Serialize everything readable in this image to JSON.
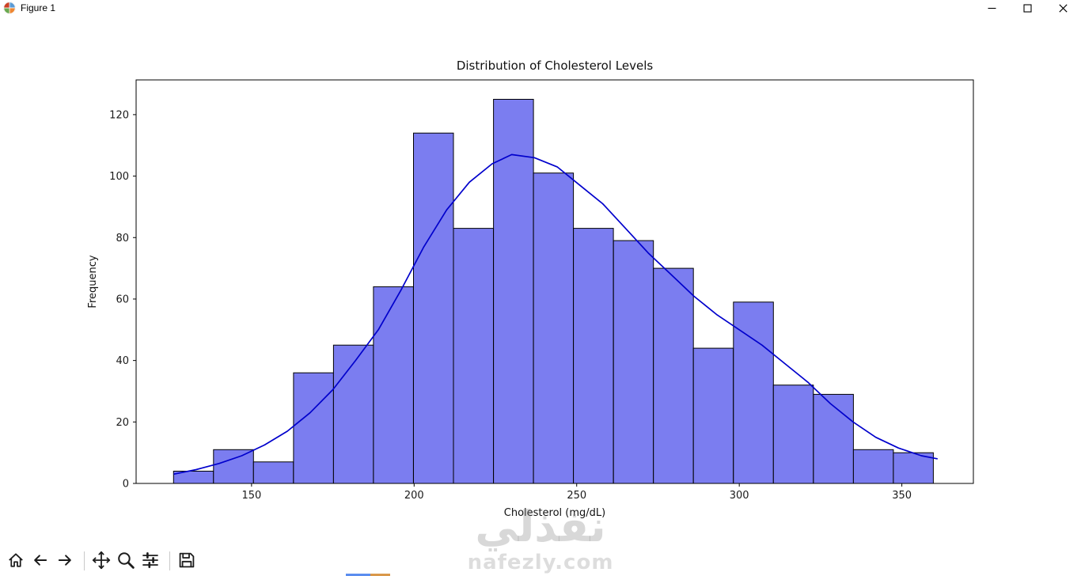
{
  "window": {
    "title": "Figure 1"
  },
  "toolbar": {
    "buttons": [
      {
        "id": "home",
        "label": "Home"
      },
      {
        "id": "back",
        "label": "Back"
      },
      {
        "id": "forward",
        "label": "Forward"
      },
      {
        "id": "pan",
        "label": "Pan"
      },
      {
        "id": "zoom",
        "label": "Zoom"
      },
      {
        "id": "subplots",
        "label": "Configure subplots"
      },
      {
        "id": "save",
        "label": "Save"
      }
    ]
  },
  "watermark": {
    "arabic": "نفذلي",
    "site": "nafezly.com"
  },
  "chart_data": {
    "type": "histogram",
    "title": "Distribution of Cholesterol Levels",
    "xlabel": "Cholesterol (mg/dL)",
    "ylabel": "Frequency",
    "x_ticks": [
      150,
      200,
      250,
      300,
      350
    ],
    "y_ticks": [
      0,
      20,
      40,
      60,
      80,
      100,
      120
    ],
    "xlim": [
      114.5,
      372
    ],
    "ylim": [
      0,
      131.3
    ],
    "grid": false,
    "legend": "none",
    "bar_color": "#7b7df0",
    "bar_edge_color": "#000000",
    "kde_color": "#0000cc",
    "bin_edges": [
      126.0,
      138.3,
      150.6,
      162.9,
      175.2,
      187.5,
      199.8,
      212.1,
      224.4,
      236.7,
      249.0,
      261.3,
      273.6,
      285.9,
      298.2,
      310.5,
      322.8,
      335.1,
      347.4,
      359.7
    ],
    "counts": [
      4,
      11,
      7,
      36,
      45,
      64,
      114,
      83,
      125,
      101,
      83,
      79,
      70,
      44,
      59,
      32,
      29,
      11,
      10
    ],
    "kde_points": [
      [
        126,
        3
      ],
      [
        133,
        4.5
      ],
      [
        140,
        6.5
      ],
      [
        147,
        9
      ],
      [
        154,
        12.5
      ],
      [
        161,
        17
      ],
      [
        168,
        23
      ],
      [
        175,
        30.5
      ],
      [
        182,
        40
      ],
      [
        189,
        50
      ],
      [
        196,
        63
      ],
      [
        203,
        77
      ],
      [
        210,
        89
      ],
      [
        217,
        98
      ],
      [
        224,
        104
      ],
      [
        230,
        107
      ],
      [
        237,
        106
      ],
      [
        244,
        103
      ],
      [
        251,
        97
      ],
      [
        258,
        91
      ],
      [
        265,
        83
      ],
      [
        272,
        75
      ],
      [
        279,
        68
      ],
      [
        286,
        61
      ],
      [
        293,
        55
      ],
      [
        300,
        50
      ],
      [
        307,
        45
      ],
      [
        314,
        39
      ],
      [
        321,
        33
      ],
      [
        328,
        26
      ],
      [
        335,
        20
      ],
      [
        342,
        15
      ],
      [
        349,
        11.5
      ],
      [
        356,
        9
      ],
      [
        361,
        8
      ]
    ]
  }
}
